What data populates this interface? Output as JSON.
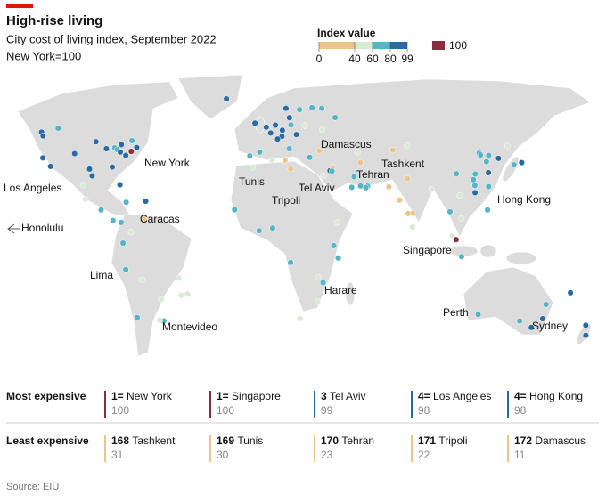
{
  "header": {
    "title": "High-rise living",
    "subtitle": "City cost of living index, September 2022",
    "note": "New York=100"
  },
  "legend": {
    "title": "Index value",
    "ticks": [
      0,
      40,
      60,
      80,
      99
    ],
    "colors": [
      "#ecc58a",
      "#d9ead3",
      "#53b5c6",
      "#2a6aa3"
    ],
    "highlight": {
      "value": 100,
      "color": "#8c2d3f"
    }
  },
  "map": {
    "offmap_label": "Honolulu",
    "cities": [
      {
        "name": "New York",
        "lon": -74,
        "lat": 40.7,
        "value": 100
      },
      {
        "name": "Los Angeles",
        "lon": -118.2,
        "lat": 34,
        "value": 98
      },
      {
        "name": "Caracas",
        "lon": -66.9,
        "lat": 10.5,
        "value": 35
      },
      {
        "name": "Lima",
        "lon": -77,
        "lat": -12,
        "value": 70
      },
      {
        "name": "Montevideo",
        "lon": -56.2,
        "lat": -34.9,
        "value": 70
      },
      {
        "name": "Tunis",
        "lon": 10.2,
        "lat": 36.8,
        "value": 30
      },
      {
        "name": "Tripoli",
        "lon": 13.2,
        "lat": 32.9,
        "value": 22
      },
      {
        "name": "Tel Aviv",
        "lon": 34.8,
        "lat": 32.1,
        "value": 99
      },
      {
        "name": "Damascus",
        "lon": 36.3,
        "lat": 33.5,
        "value": 11
      },
      {
        "name": "Tehran",
        "lon": 51.4,
        "lat": 35.7,
        "value": 23
      },
      {
        "name": "Tashkent",
        "lon": 69.2,
        "lat": 41.3,
        "value": 31
      },
      {
        "name": "Hong Kong",
        "lon": 114.2,
        "lat": 22.3,
        "value": 98
      },
      {
        "name": "Singapore",
        "lon": 103.8,
        "lat": 1.35,
        "value": 100
      },
      {
        "name": "Harare",
        "lon": 31,
        "lat": -17.8,
        "value": 60
      },
      {
        "name": "Perth",
        "lon": 115.9,
        "lat": -32,
        "value": 70
      },
      {
        "name": "Sydney",
        "lon": 151.2,
        "lat": -33.9,
        "value": 85
      },
      {
        "lon": -0.1,
        "lat": 51.5,
        "value": 80
      },
      {
        "lon": 2.3,
        "lat": 48.9,
        "value": 85
      },
      {
        "lon": 8.5,
        "lat": 47.4,
        "value": 95
      },
      {
        "lon": 6.1,
        "lat": 46.2,
        "value": 95
      },
      {
        "lon": 4.9,
        "lat": 52.4,
        "value": 85
      },
      {
        "lon": 8.7,
        "lat": 50.1,
        "value": 80
      },
      {
        "lon": 13.4,
        "lat": 52.5,
        "value": 75
      },
      {
        "lon": 12.6,
        "lat": 55.7,
        "value": 90
      },
      {
        "lon": 10.7,
        "lat": 59.9,
        "value": 80
      },
      {
        "lon": 18.1,
        "lat": 59.3,
        "value": 75
      },
      {
        "lon": 24.9,
        "lat": 60.2,
        "value": 75
      },
      {
        "lon": 16.4,
        "lat": 48.2,
        "value": 80
      },
      {
        "lon": -3.7,
        "lat": 40.4,
        "value": 65
      },
      {
        "lon": -9.1,
        "lat": 38.7,
        "value": 60
      },
      {
        "lon": 12.5,
        "lat": 41.9,
        "value": 70
      },
      {
        "lon": 23.7,
        "lat": 38,
        "value": 60
      },
      {
        "lon": 21,
        "lat": 52.2,
        "value": 55
      },
      {
        "lon": 37.6,
        "lat": 55.8,
        "value": 65
      },
      {
        "lon": 30.3,
        "lat": 59.9,
        "value": 60
      },
      {
        "lon": 29,
        "lat": 41,
        "value": 35
      },
      {
        "lon": 30.5,
        "lat": 50.4,
        "value": 50
      },
      {
        "lon": -6.3,
        "lat": 53.3,
        "value": 85
      },
      {
        "lon": -21.9,
        "lat": 64.1,
        "value": 80
      },
      {
        "lon": 55.3,
        "lat": 25.2,
        "value": 75
      },
      {
        "lon": 46.7,
        "lat": 24.7,
        "value": 65
      },
      {
        "lon": 51.5,
        "lat": 25.3,
        "value": 65
      },
      {
        "lon": 48,
        "lat": 29.4,
        "value": 60
      },
      {
        "lon": 35.9,
        "lat": 31.9,
        "value": 65
      },
      {
        "lon": 31.2,
        "lat": 30,
        "value": 45
      },
      {
        "lon": 54.4,
        "lat": 24.5,
        "value": 70
      },
      {
        "lon": 49.9,
        "lat": 40.4,
        "value": 50
      },
      {
        "lon": 76.9,
        "lat": 43.2,
        "value": 40
      },
      {
        "lon": 72.9,
        "lat": 19,
        "value": 35
      },
      {
        "lon": 77.2,
        "lat": 28.6,
        "value": 35
      },
      {
        "lon": 77.6,
        "lat": 13,
        "value": 30
      },
      {
        "lon": 80.3,
        "lat": 13.1,
        "value": 30
      },
      {
        "lon": 67,
        "lat": 24.9,
        "value": 30
      },
      {
        "lon": 90.4,
        "lat": 23.8,
        "value": 45
      },
      {
        "lon": 100.5,
        "lat": 13.8,
        "value": 60
      },
      {
        "lon": 105.8,
        "lat": 21,
        "value": 55
      },
      {
        "lon": 106.7,
        "lat": 10.8,
        "value": 50
      },
      {
        "lon": 101.7,
        "lat": 3.1,
        "value": 50
      },
      {
        "lon": 106.8,
        "lat": -6.2,
        "value": 60
      },
      {
        "lon": 121,
        "lat": 14.6,
        "value": 60
      },
      {
        "lon": 116.4,
        "lat": 39.9,
        "value": 75
      },
      {
        "lon": 121.5,
        "lat": 31.2,
        "value": 80
      },
      {
        "lon": 114.1,
        "lat": 25.5,
        "value": 75
      },
      {
        "lon": 113.3,
        "lat": 28.1,
        "value": 70
      },
      {
        "lon": 127,
        "lat": 37.6,
        "value": 85
      },
      {
        "lon": 139.7,
        "lat": 35.7,
        "value": 80
      },
      {
        "lon": 135.5,
        "lat": 34.7,
        "value": 75
      },
      {
        "lon": 121.6,
        "lat": 25,
        "value": 75
      },
      {
        "lon": 79.9,
        "lat": 6.9,
        "value": 40
      },
      {
        "lon": 117.2,
        "lat": 39.1,
        "value": 65
      },
      {
        "lon": 121.6,
        "lat": 38.9,
        "value": 65
      },
      {
        "lon": 120.4,
        "lat": 36.1,
        "value": 65
      },
      {
        "lon": 114.3,
        "lat": 30.6,
        "value": 65
      },
      {
        "lon": 104,
        "lat": 30.7,
        "value": 60
      },
      {
        "lon": 131.9,
        "lat": 43.1,
        "value": 55
      },
      {
        "lon": 3.4,
        "lat": 6.5,
        "value": 70
      },
      {
        "lon": 36.8,
        "lat": -1.3,
        "value": 60
      },
      {
        "lon": 28,
        "lat": -26.2,
        "value": 55
      },
      {
        "lon": 18.4,
        "lat": -33.9,
        "value": 55
      },
      {
        "lon": -7.6,
        "lat": 33.6,
        "value": 50
      },
      {
        "lon": 3,
        "lat": 36.8,
        "value": 40
      },
      {
        "lon": -17.4,
        "lat": 14.7,
        "value": 70
      },
      {
        "lon": -4,
        "lat": 5.3,
        "value": 70
      },
      {
        "lon": 13.2,
        "lat": -8.8,
        "value": 60
      },
      {
        "lon": 28.3,
        "lat": -15.4,
        "value": 45
      },
      {
        "lon": 39.3,
        "lat": -6.8,
        "value": 60
      },
      {
        "lon": 38.7,
        "lat": 9,
        "value": 55
      },
      {
        "lon": -79.4,
        "lat": 43.7,
        "value": 80
      },
      {
        "lon": -73.6,
        "lat": 45.5,
        "value": 75
      },
      {
        "lon": -123.1,
        "lat": 49.3,
        "value": 80
      },
      {
        "lon": -114,
        "lat": 51,
        "value": 75
      },
      {
        "lon": -87.6,
        "lat": 41.9,
        "value": 85
      },
      {
        "lon": -71,
        "lat": 42.4,
        "value": 90
      },
      {
        "lon": -77,
        "lat": 38.9,
        "value": 90
      },
      {
        "lon": -84.4,
        "lat": 33.7,
        "value": 80
      },
      {
        "lon": -80.2,
        "lat": 25.8,
        "value": 85
      },
      {
        "lon": -95.4,
        "lat": 29.8,
        "value": 80
      },
      {
        "lon": -96.8,
        "lat": 32.8,
        "value": 80
      },
      {
        "lon": -105,
        "lat": 39.7,
        "value": 80
      },
      {
        "lon": -122.3,
        "lat": 47.6,
        "value": 90
      },
      {
        "lon": -122.4,
        "lat": 37.8,
        "value": 95
      },
      {
        "lon": -83,
        "lat": 42.3,
        "value": 75
      },
      {
        "lon": -93.3,
        "lat": 45,
        "value": 80
      },
      {
        "lon": -81.7,
        "lat": 41.5,
        "value": 75
      },
      {
        "lon": -80,
        "lat": 40.4,
        "value": 80
      },
      {
        "lon": -99.1,
        "lat": 19.4,
        "value": 55
      },
      {
        "lon": -100.3,
        "lat": 25.7,
        "value": 55
      },
      {
        "lon": -90.5,
        "lat": 14.6,
        "value": 60
      },
      {
        "lon": -79.5,
        "lat": 9,
        "value": 65
      },
      {
        "lon": -84,
        "lat": 9.9,
        "value": 65
      },
      {
        "lon": -76.8,
        "lat": 18,
        "value": 70
      },
      {
        "lon": -66.1,
        "lat": 18.5,
        "value": 80
      },
      {
        "lon": -74.1,
        "lat": 4.7,
        "value": 45
      },
      {
        "lon": -78.5,
        "lat": -0.2,
        "value": 60
      },
      {
        "lon": -70.7,
        "lat": -33.4,
        "value": 60
      },
      {
        "lon": -58.4,
        "lat": -34.6,
        "value": 55
      },
      {
        "lon": -46.6,
        "lat": -23.5,
        "value": 55
      },
      {
        "lon": -43.2,
        "lat": -22.9,
        "value": 55
      },
      {
        "lon": -47.9,
        "lat": -15.8,
        "value": 55
      },
      {
        "lon": -57.6,
        "lat": -25.3,
        "value": 50
      },
      {
        "lon": -68.1,
        "lat": -16.5,
        "value": 50
      },
      {
        "lon": 145,
        "lat": -37.8,
        "value": 80
      },
      {
        "lon": 153,
        "lat": -27.5,
        "value": 75
      },
      {
        "lon": 138.6,
        "lat": -34.9,
        "value": 75
      },
      {
        "lon": 174.8,
        "lat": -36.8,
        "value": 80
      },
      {
        "lon": 174.8,
        "lat": -41.3,
        "value": 80
      },
      {
        "lon": 166.4,
        "lat": -22.3,
        "value": 90
      }
    ]
  },
  "rankings": [
    {
      "label": "Most expensive",
      "entries": [
        {
          "rank": "1=",
          "city": "New York",
          "value": 100
        },
        {
          "rank": "1=",
          "city": "Singapore",
          "value": 100
        },
        {
          "rank": 3,
          "city": "Tel Aviv",
          "value": 99
        },
        {
          "rank": "4=",
          "city": "Los Angeles",
          "value": 98
        },
        {
          "rank": "4=",
          "city": "Hong Kong",
          "value": 98
        }
      ]
    },
    {
      "label": "Least expensive",
      "entries": [
        {
          "rank": 168,
          "city": "Tashkent",
          "value": 31
        },
        {
          "rank": 169,
          "city": "Tunis",
          "value": 30
        },
        {
          "rank": 170,
          "city": "Tehran",
          "value": 23
        },
        {
          "rank": 171,
          "city": "Tripoli",
          "value": 22
        },
        {
          "rank": 172,
          "city": "Damascus",
          "value": 11
        }
      ]
    }
  ],
  "source": "Source: EIU"
}
